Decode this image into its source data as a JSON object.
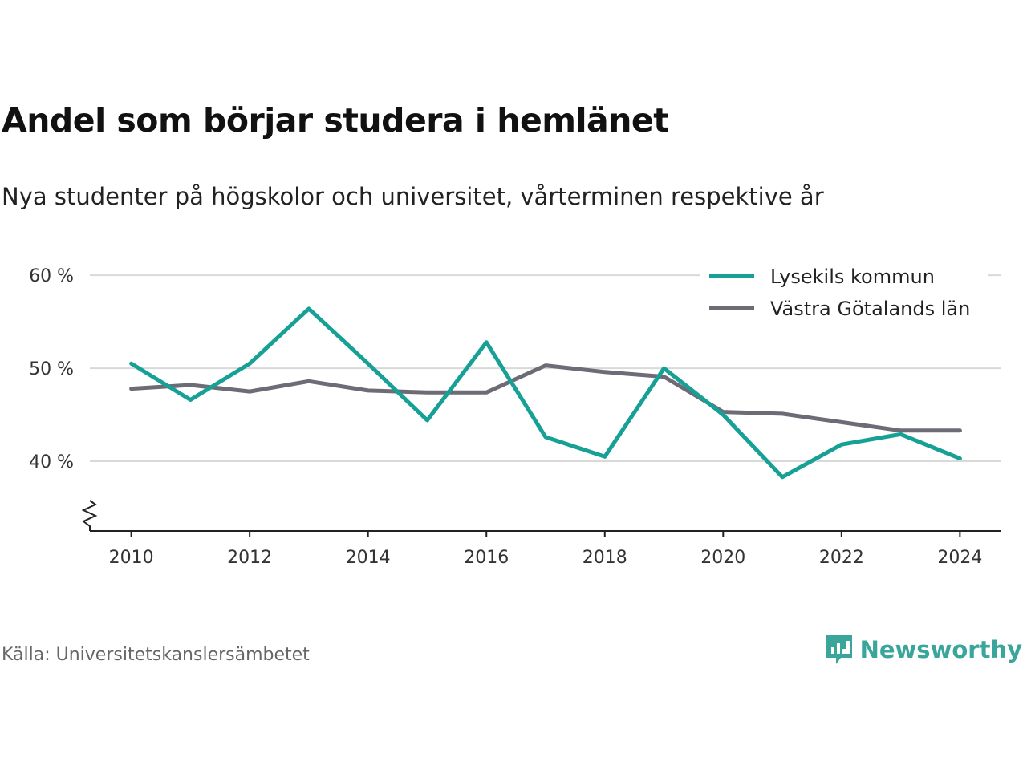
{
  "title": "Andel som börjar studera i hemlänet",
  "subtitle": "Nya studenter på högskolor och universitet, vårterminen respektive år",
  "source": "Källa: Universitetskanslersämbetet",
  "brand": {
    "name": "Newsworthy",
    "icon": "newsworthy-logo-icon",
    "color": "#3aa59a"
  },
  "chart_data": {
    "type": "line",
    "x": [
      2010,
      2011,
      2012,
      2013,
      2014,
      2015,
      2016,
      2017,
      2018,
      2019,
      2020,
      2021,
      2022,
      2023,
      2024
    ],
    "x_ticks": [
      {
        "value": 2010,
        "label": "2010"
      },
      {
        "value": 2012,
        "label": "2012"
      },
      {
        "value": 2014,
        "label": "2014"
      },
      {
        "value": 2016,
        "label": "2016"
      },
      {
        "value": 2018,
        "label": "2018"
      },
      {
        "value": 2020,
        "label": "2020"
      },
      {
        "value": 2022,
        "label": "2022"
      },
      {
        "value": 2024,
        "label": "2024"
      }
    ],
    "y_ticks": [
      {
        "value": 40,
        "label": "40 %"
      },
      {
        "value": 50,
        "label": "50 %"
      },
      {
        "value": 60,
        "label": "60 %"
      }
    ],
    "ylim": [
      32.5,
      62
    ],
    "xlim": [
      2009.3,
      2024.7
    ],
    "y_axis_break": true,
    "grid": "horizontal",
    "legend_position": "top-right",
    "series": [
      {
        "name": "Lysekils kommun",
        "color": "#16a096",
        "values": [
          50.5,
          46.6,
          50.5,
          56.4,
          50.5,
          44.4,
          52.8,
          42.6,
          40.5,
          50.0,
          45.0,
          38.3,
          41.8,
          42.9,
          40.3
        ]
      },
      {
        "name": "Västra Götalands län",
        "color": "#6d6b75",
        "values": [
          47.8,
          48.2,
          47.5,
          48.6,
          47.6,
          47.4,
          47.4,
          50.3,
          49.6,
          49.1,
          45.3,
          45.1,
          44.2,
          43.3,
          43.3
        ]
      }
    ]
  }
}
